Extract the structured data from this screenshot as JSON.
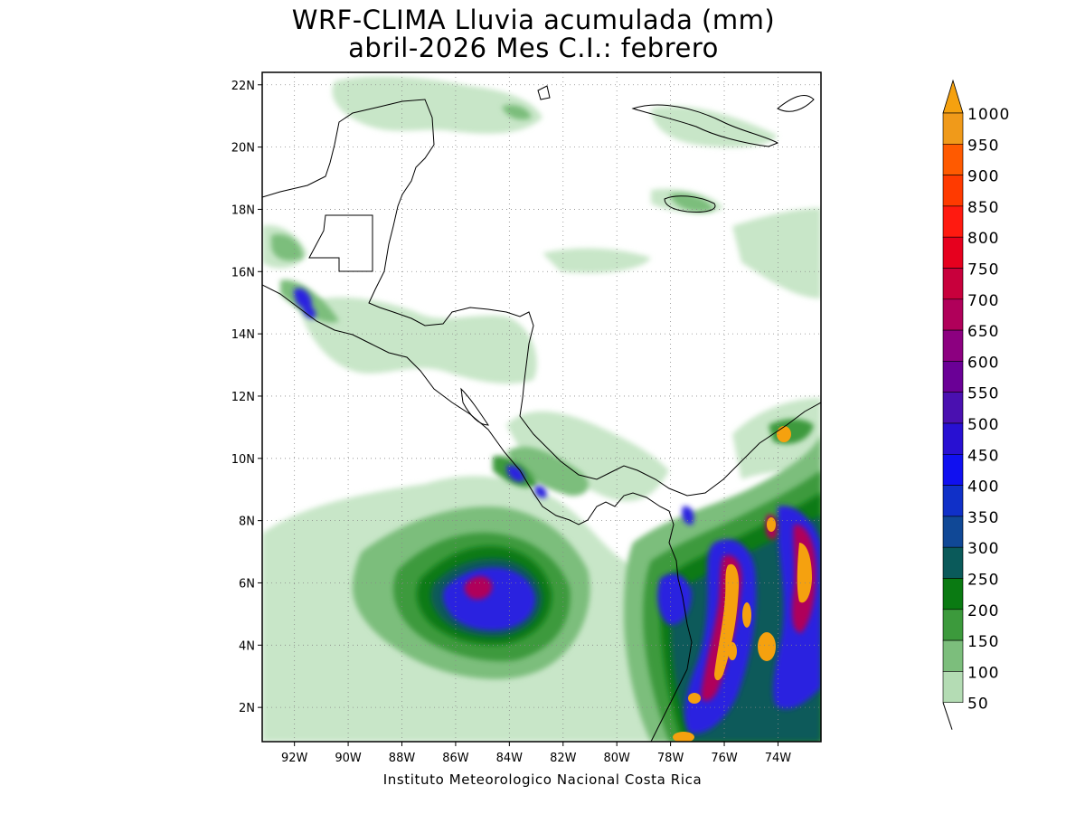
{
  "title_line1": "WRF-CLIMA Lluvia acumulada (mm)",
  "title_line2": "abril-2026 Mes C.I.: febrero",
  "footer": "Instituto Meteorologico Nacional Costa Rica",
  "map": {
    "lon_range": [
      -93.2,
      -72.4
    ],
    "lat_range": [
      0.9,
      22.4
    ],
    "lat_ticks": [
      "22N",
      "20N",
      "18N",
      "16N",
      "14N",
      "12N",
      "10N",
      "8N",
      "6N",
      "4N",
      "2N"
    ],
    "lat_tick_values": [
      22,
      20,
      18,
      16,
      14,
      12,
      10,
      8,
      6,
      4,
      2
    ],
    "lon_ticks": [
      "92W",
      "90W",
      "88W",
      "86W",
      "84W",
      "82W",
      "80W",
      "78W",
      "76W",
      "74W"
    ],
    "lon_tick_values": [
      -92,
      -90,
      -88,
      -86,
      -84,
      -82,
      -80,
      -78,
      -76,
      -74
    ],
    "grid": "dotted"
  },
  "colorbar": {
    "labels": [
      "1000",
      "950",
      "900",
      "850",
      "800",
      "750",
      "700",
      "650",
      "600",
      "550",
      "500",
      "450",
      "400",
      "350",
      "300",
      "250",
      "200",
      "150",
      "100",
      "50"
    ],
    "colors": [
      "#f09a1a",
      "#ff5a00",
      "#ff3a00",
      "#ff1a10",
      "#e6001e",
      "#c8003c",
      "#b0005a",
      "#8c0080",
      "#6a0096",
      "#4a10b0",
      "#2810d2",
      "#1010f0",
      "#1030c8",
      "#104896",
      "#0a5a5a",
      "#0a7a12",
      "#3c9a3c",
      "#7cbe7c",
      "#b4dcb4"
    ],
    "over_color": "#f5a10f"
  }
}
